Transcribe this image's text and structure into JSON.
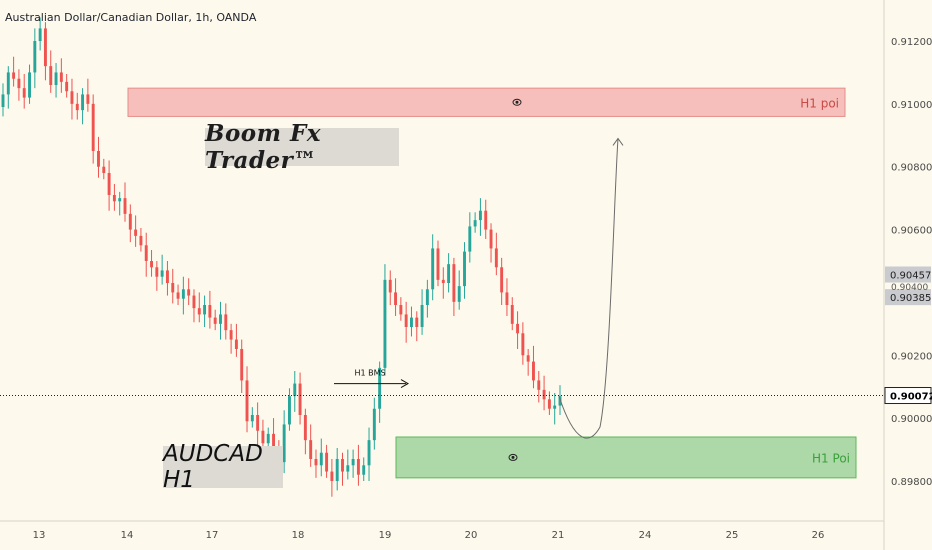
{
  "chart_data": {
    "type": "candlestick",
    "title": "Australian Dollar/Canadian Dollar, 1h, OANDA",
    "x_ticks": [
      "13",
      "14",
      "17",
      "18",
      "19",
      "20",
      "21",
      "24",
      "25",
      "26"
    ],
    "y_ticks": [
      "0.91200",
      "0.91000",
      "0.90800",
      "0.90600",
      "0.90200",
      "0.90000",
      "0.89800"
    ],
    "ylim": [
      0.897,
      0.913
    ],
    "price_labels": [
      {
        "value": 0.90457,
        "text": "0.90457"
      },
      {
        "value": 0.90385,
        "text": "0.90385"
      },
      {
        "value": 0.90072,
        "text": "0.90072",
        "current": true
      }
    ],
    "hidden_label": "0.90400",
    "close_series": [
      0.9103,
      0.911,
      0.9108,
      0.9105,
      0.9102,
      0.911,
      0.912,
      0.9124,
      0.9112,
      0.9106,
      0.911,
      0.9107,
      0.9104,
      0.91,
      0.9098,
      0.9103,
      0.91,
      0.9085,
      0.908,
      0.9078,
      0.9071,
      0.9069,
      0.907,
      0.9065,
      0.906,
      0.9058,
      0.9055,
      0.905,
      0.9048,
      0.9045,
      0.9047,
      0.9043,
      0.904,
      0.9038,
      0.9041,
      0.9039,
      0.9035,
      0.9033,
      0.9036,
      0.9032,
      0.903,
      0.9033,
      0.9028,
      0.9025,
      0.9022,
      0.9012,
      0.8999,
      0.9001,
      0.8996,
      0.8992,
      0.8995,
      0.899,
      0.8986,
      0.8998,
      0.9007,
      0.9011,
      0.9001,
      0.8993,
      0.8987,
      0.8985,
      0.8989,
      0.8983,
      0.898,
      0.8987,
      0.8983,
      0.8985,
      0.8987,
      0.8982,
      0.8985,
      0.8993,
      0.9003,
      0.9016,
      0.9044,
      0.904,
      0.9036,
      0.9033,
      0.9029,
      0.9032,
      0.9029,
      0.9036,
      0.9041,
      0.9054,
      0.9044,
      0.9043,
      0.9049,
      0.9037,
      0.9042,
      0.9053,
      0.9061,
      0.9063,
      0.9066,
      0.906,
      0.9054,
      0.9048,
      0.904,
      0.9036,
      0.903,
      0.9027,
      0.902,
      0.9018,
      0.9012,
      0.9009,
      0.9006,
      0.9003,
      0.9004,
      0.9007
    ],
    "series_colors": {
      "up": "#26a69a",
      "down": "#ef5350"
    },
    "zones": [
      {
        "label": "H1 poi",
        "top": 0.9105,
        "bottom": 0.9096,
        "color": "#f5b5b3"
      },
      {
        "label": "H1 Poi",
        "top": 0.8994,
        "bottom": 0.8981,
        "color": "#9fd49c"
      }
    ],
    "bms_label": "H1 BMS",
    "bms_level": 0.9011,
    "projection_low": 0.8994,
    "projection_target": 0.9089
  },
  "annotations": {
    "brand": "Boom Fx Trader™",
    "pair": "AUDCAD H1"
  }
}
